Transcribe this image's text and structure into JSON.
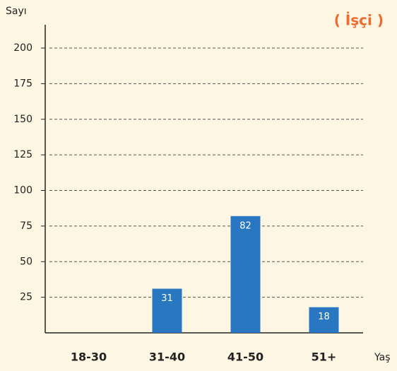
{
  "chart_data": {
    "type": "bar",
    "title": "( İşçi )",
    "y_label": "Sayı",
    "x_label": "Yaş",
    "categories": [
      "18-30",
      "31-40",
      "41-50",
      "51+"
    ],
    "values": [
      null,
      31,
      82,
      18
    ],
    "color": "#2a77c1",
    "ylim": [
      0,
      216
    ],
    "yticks": [
      25,
      50,
      75,
      100,
      125,
      150,
      175,
      200
    ],
    "grid": true
  }
}
